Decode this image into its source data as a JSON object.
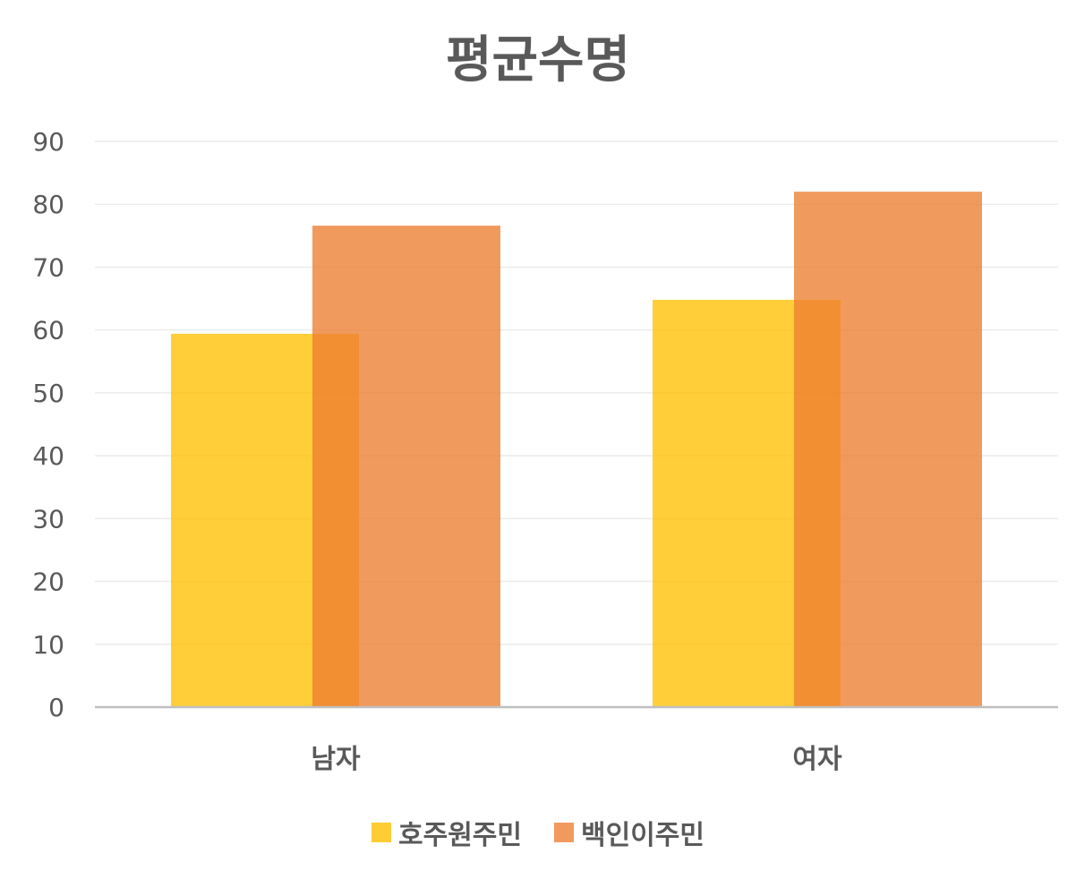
{
  "chart_data": {
    "type": "bar",
    "title": "평균수명",
    "categories": [
      "남자",
      "여자"
    ],
    "series": [
      {
        "name": "호주원주민",
        "values": [
          59.4,
          64.8
        ],
        "color": "#FFC000"
      },
      {
        "name": "백인이주민",
        "values": [
          76.6,
          82.0
        ],
        "color": "#ED7D31"
      }
    ],
    "ylim": [
      0,
      90
    ],
    "yticks": [
      "0",
      "10",
      "20",
      "30",
      "40",
      "50",
      "60",
      "70",
      "80",
      "90"
    ],
    "grid": true,
    "legend": "bottom",
    "bars_overlap": true
  }
}
